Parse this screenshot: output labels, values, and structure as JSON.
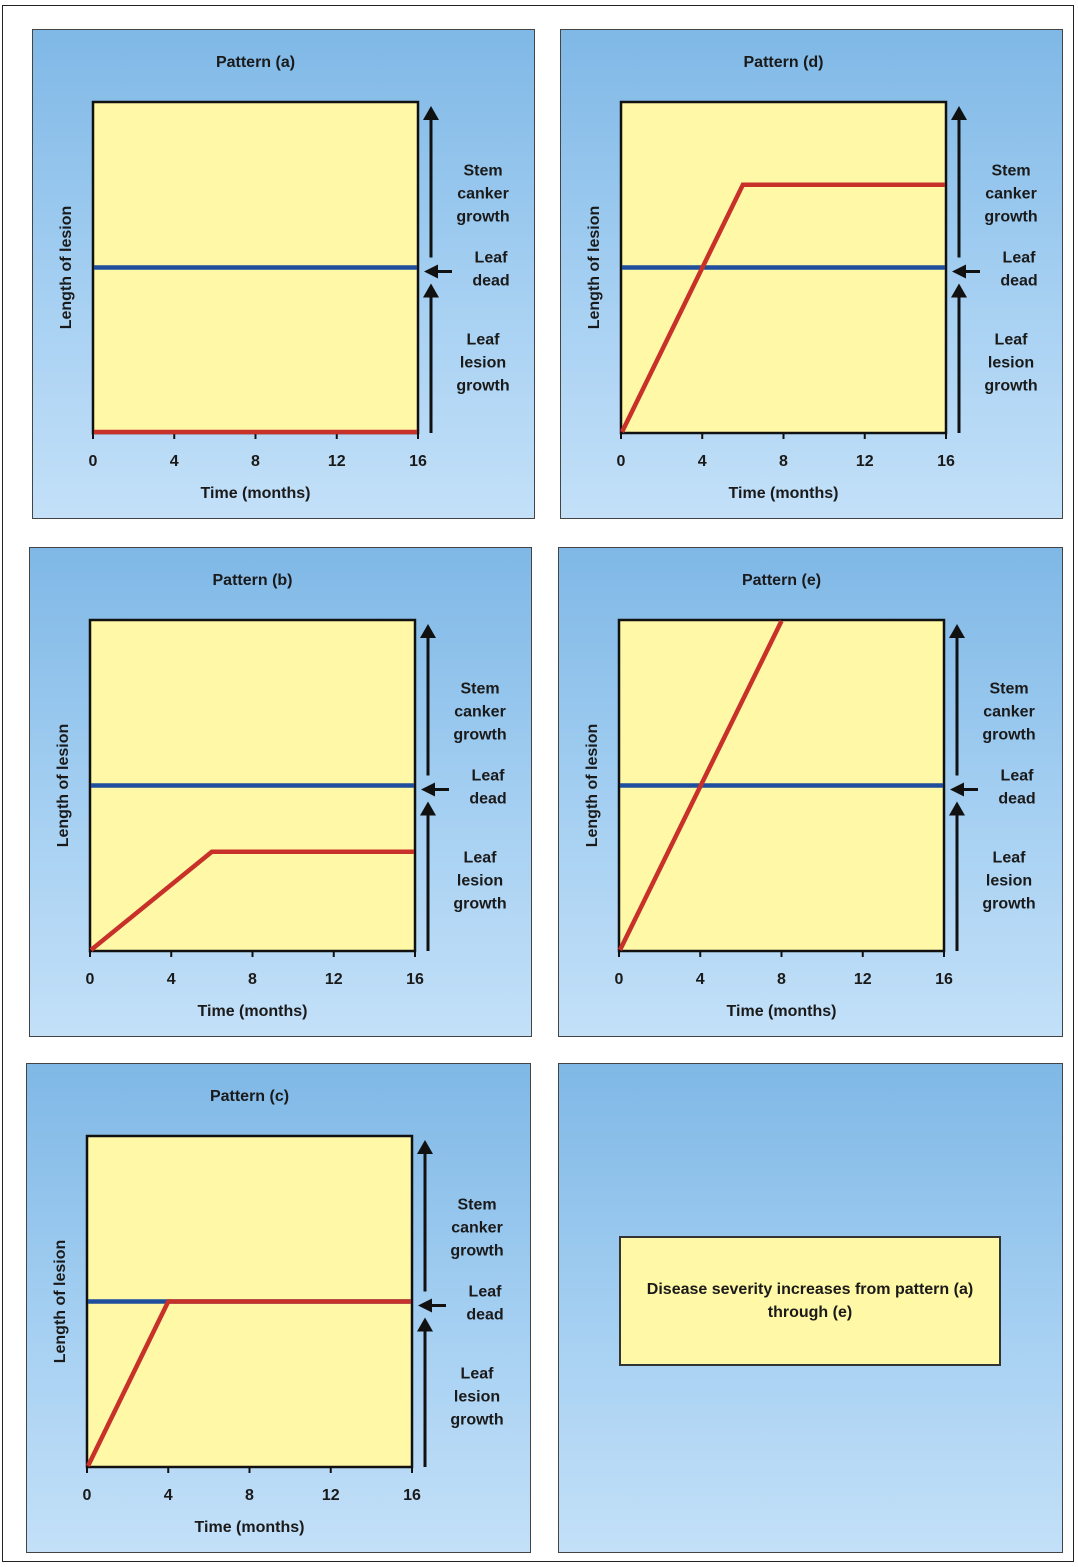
{
  "colors": {
    "panel_bg": "#a6d0f2",
    "plot_bg": "#fff8a6",
    "leaf_dead_line": "#1f4e9c",
    "lesion_line": "#c8302a",
    "arrow": "#111111"
  },
  "side_labels": {
    "stem": [
      "Stem",
      "canker",
      "growth"
    ],
    "leaf_dead": [
      "Leaf",
      "dead"
    ],
    "leaf_lesion": [
      "Leaf",
      "lesion",
      "growth"
    ]
  },
  "chart_data": [
    {
      "type": "line",
      "title": "Pattern (a)",
      "xlabel": "Time (months)",
      "ylabel": "Length of lesion",
      "xlim": [
        0,
        16
      ],
      "ylim": [
        0,
        1
      ],
      "x_ticks": [
        "0",
        "4",
        "8",
        "12",
        "16"
      ],
      "reference_line": {
        "label": "Leaf dead",
        "y": 0.5
      },
      "series": [
        {
          "x": [
            0,
            16
          ],
          "y": [
            0.0,
            0.0
          ]
        }
      ]
    },
    {
      "type": "line",
      "title": "Pattern (b)",
      "xlabel": "Time (months)",
      "ylabel": "Length of lesion",
      "xlim": [
        0,
        16
      ],
      "ylim": [
        0,
        1
      ],
      "x_ticks": [
        "0",
        "4",
        "8",
        "12",
        "16"
      ],
      "reference_line": {
        "label": "Leaf dead",
        "y": 0.5
      },
      "series": [
        {
          "x": [
            0,
            6,
            16
          ],
          "y": [
            0.0,
            0.3,
            0.3
          ]
        }
      ]
    },
    {
      "type": "line",
      "title": "Pattern (c)",
      "xlabel": "Time (months)",
      "ylabel": "Length of lesion",
      "xlim": [
        0,
        16
      ],
      "ylim": [
        0,
        1
      ],
      "x_ticks": [
        "0",
        "4",
        "8",
        "12",
        "16"
      ],
      "reference_line": {
        "label": "Leaf dead",
        "y": 0.5
      },
      "series": [
        {
          "x": [
            0,
            4,
            16
          ],
          "y": [
            0.0,
            0.5,
            0.5
          ]
        }
      ]
    },
    {
      "type": "line",
      "title": "Pattern (d)",
      "xlabel": "Time (months)",
      "ylabel": "Length of lesion",
      "xlim": [
        0,
        16
      ],
      "ylim": [
        0,
        1
      ],
      "x_ticks": [
        "0",
        "4",
        "8",
        "12",
        "16"
      ],
      "reference_line": {
        "label": "Leaf dead",
        "y": 0.5
      },
      "series": [
        {
          "x": [
            0,
            6,
            16
          ],
          "y": [
            0.0,
            0.75,
            0.75
          ]
        }
      ]
    },
    {
      "type": "line",
      "title": "Pattern (e)",
      "xlabel": "Time (months)",
      "ylabel": "Length of lesion",
      "xlim": [
        0,
        16
      ],
      "ylim": [
        0,
        1
      ],
      "x_ticks": [
        "0",
        "4",
        "8",
        "12",
        "16"
      ],
      "reference_line": {
        "label": "Leaf dead",
        "y": 0.5
      },
      "series": [
        {
          "x": [
            0,
            8
          ],
          "y": [
            0.0,
            1.0
          ]
        }
      ]
    }
  ],
  "note": {
    "line1": "Disease severity increases from pattern (a)",
    "line2": "through (e)"
  }
}
